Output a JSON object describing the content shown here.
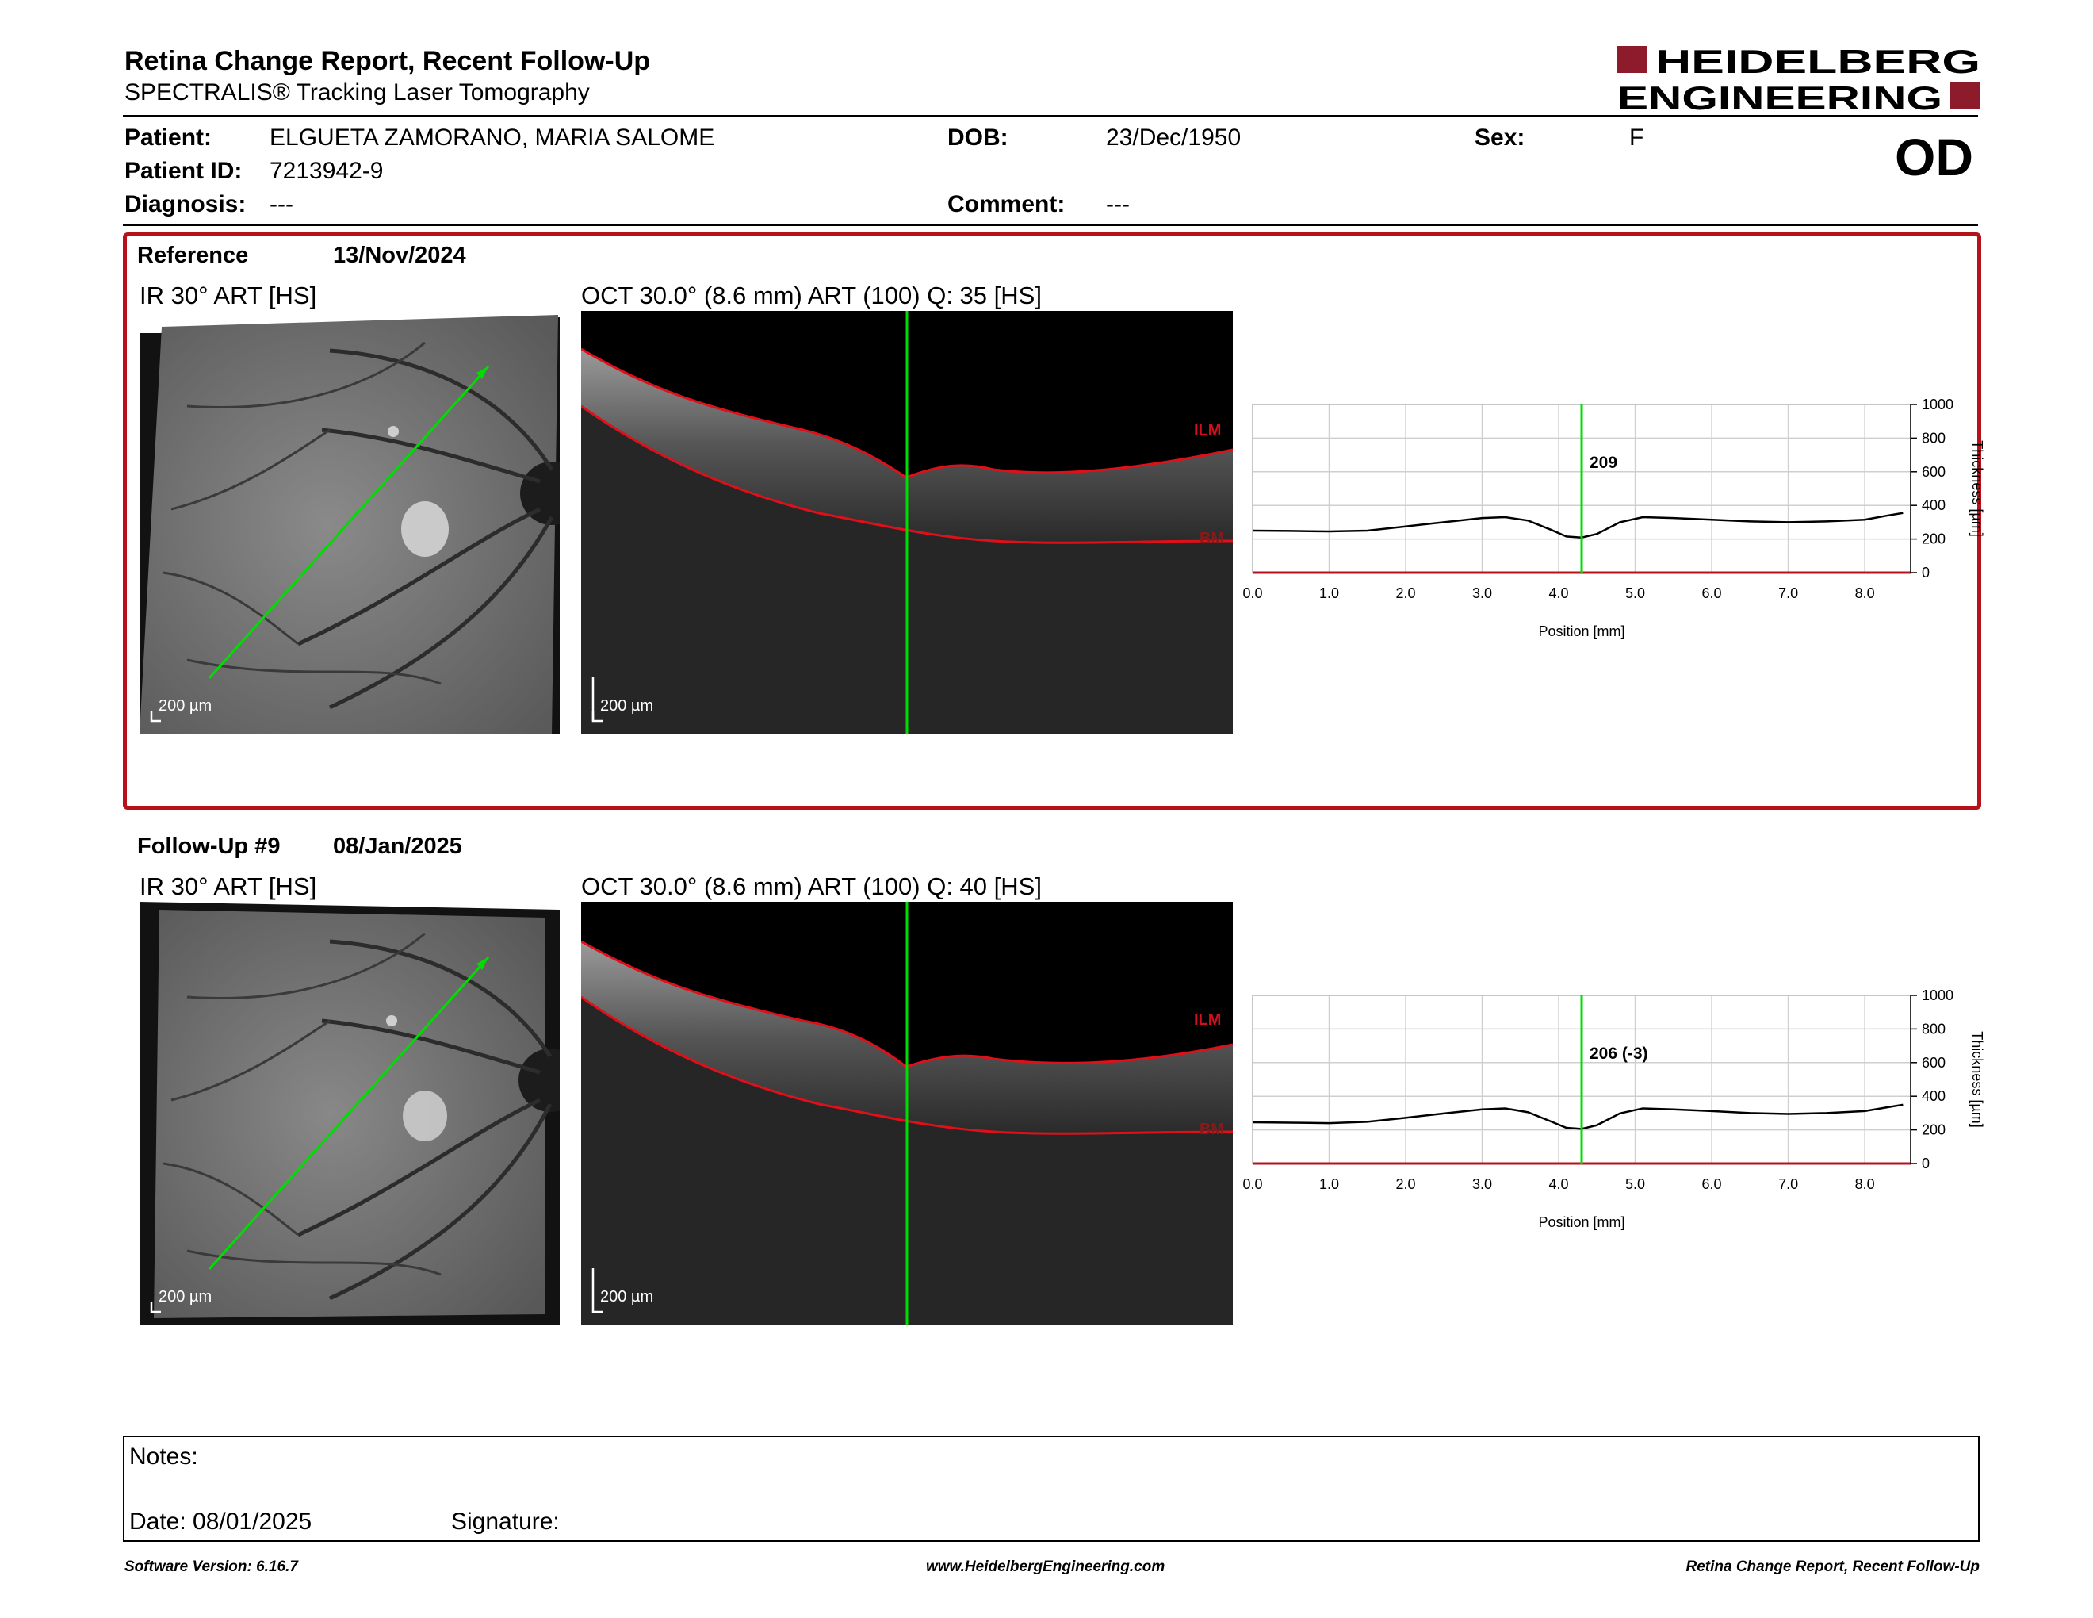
{
  "header": {
    "title": "Retina Change Report, Recent Follow-Up",
    "subtitle": "SPECTRALIS® Tracking Laser Tomography",
    "logo_line1": "HEIDELBERG",
    "logo_line2": "ENGINEERING",
    "eye": "OD"
  },
  "patient": {
    "patient_label": "Patient:",
    "patient_value": "ELGUETA ZAMORANO, MARIA SALOME",
    "id_label": "Patient ID:",
    "id_value": "7213942-9",
    "diagnosis_label": "Diagnosis:",
    "diagnosis_value": "---",
    "dob_label": "DOB:",
    "dob_value": "23/Dec/1950",
    "comment_label": "Comment:",
    "comment_value": "---",
    "sex_label": "Sex:",
    "sex_value": "F"
  },
  "reference": {
    "label": "Reference",
    "date": "13/Nov/2024",
    "ir_title": "IR 30° ART [HS]",
    "oct_title": "OCT 30.0° (8.6 mm) ART (100) Q: 35 [HS]",
    "ir_scale": "200 µm",
    "oct_scale": "200 µm",
    "ilm_label": "ILM",
    "bm_label": "BM"
  },
  "followup": {
    "label": "Follow-Up #9",
    "date": "08/Jan/2025",
    "ir_title": "IR 30° ART [HS]",
    "oct_title": "OCT 30.0° (8.6 mm) ART (100) Q: 40 [HS]",
    "ir_scale": "200 µm",
    "oct_scale": "200 µm",
    "ilm_label": "ILM",
    "bm_label": "BM"
  },
  "colors": {
    "accent": "#b5121b",
    "cursor": "#00dd00",
    "boundary": "#e0101a"
  },
  "chart_data": [
    {
      "type": "line",
      "xlabel": "Position [mm]",
      "ylabel": "Thickness [µm]",
      "xlim": [
        0,
        8.6
      ],
      "ylim": [
        0,
        1000
      ],
      "x_ticks": [
        "0.0",
        "1.0",
        "2.0",
        "3.0",
        "4.0",
        "5.0",
        "6.0",
        "7.0",
        "8.0"
      ],
      "y_ticks": [
        "0",
        "200",
        "400",
        "600",
        "800",
        "1000"
      ],
      "cursor_x": 4.3,
      "cursor_label": "209",
      "grid": true,
      "x": [
        0,
        0.5,
        1.0,
        1.5,
        2.0,
        2.5,
        3.0,
        3.3,
        3.6,
        3.9,
        4.1,
        4.3,
        4.5,
        4.8,
        5.1,
        5.5,
        6.0,
        6.5,
        7.0,
        7.5,
        8.0,
        8.3,
        8.5
      ],
      "y": [
        250,
        248,
        245,
        250,
        275,
        300,
        325,
        330,
        310,
        255,
        215,
        209,
        230,
        300,
        330,
        325,
        315,
        305,
        300,
        305,
        315,
        340,
        355
      ]
    },
    {
      "type": "line",
      "xlabel": "Position [mm]",
      "ylabel": "Thickness [µm]",
      "xlim": [
        0,
        8.6
      ],
      "ylim": [
        0,
        1000
      ],
      "x_ticks": [
        "0.0",
        "1.0",
        "2.0",
        "3.0",
        "4.0",
        "5.0",
        "6.0",
        "7.0",
        "8.0"
      ],
      "y_ticks": [
        "0",
        "200",
        "400",
        "600",
        "800",
        "1000"
      ],
      "cursor_x": 4.3,
      "cursor_label": "206 (-3)",
      "grid": true,
      "x": [
        0,
        0.5,
        1.0,
        1.5,
        2.0,
        2.5,
        3.0,
        3.3,
        3.6,
        3.9,
        4.1,
        4.3,
        4.5,
        4.8,
        5.1,
        5.5,
        6.0,
        6.5,
        7.0,
        7.5,
        8.0,
        8.3,
        8.5
      ],
      "y": [
        245,
        243,
        240,
        248,
        272,
        298,
        322,
        328,
        305,
        250,
        212,
        206,
        228,
        298,
        328,
        322,
        312,
        300,
        295,
        300,
        312,
        335,
        350
      ]
    }
  ],
  "notes": {
    "notes_label": "Notes:",
    "date_label": "Date: 08/01/2025",
    "signature_label": "Signature:"
  },
  "footer": {
    "software": "Software Version: 6.16.7",
    "website": "www.HeidelbergEngineering.com",
    "report_name": "Retina Change Report, Recent Follow-Up"
  }
}
